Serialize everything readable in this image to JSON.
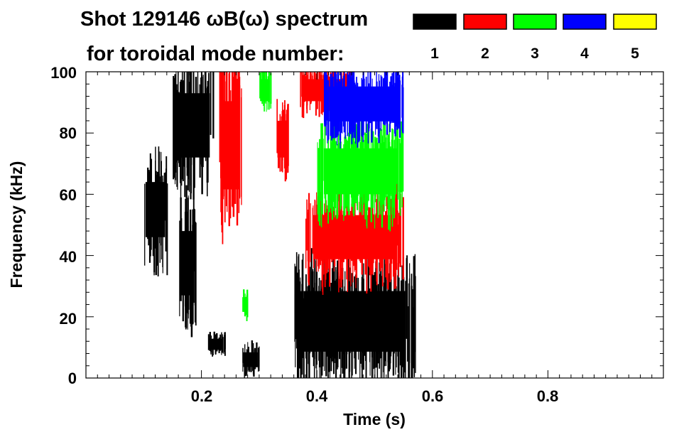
{
  "title": {
    "line1": "Shot 129146 ωB(ω) spectrum",
    "line2": "for toroidal mode number:"
  },
  "chart_data": {
    "type": "heatmap",
    "xlabel": "Time (s)",
    "ylabel": "Frequency (kHz)",
    "xlim": [
      0.0,
      1.0
    ],
    "ylim": [
      0,
      100
    ],
    "x_tick_labels": [
      "0.2",
      "0.4",
      "0.6",
      "0.8"
    ],
    "y_tick_labels": [
      "0",
      "20",
      "40",
      "60",
      "80",
      "100"
    ],
    "legend": {
      "placement": "top-right",
      "entries": [
        {
          "label": "1",
          "color": "#000000"
        },
        {
          "label": "2",
          "color": "#ff0000"
        },
        {
          "label": "3",
          "color": "#00ff00"
        },
        {
          "label": "4",
          "color": "#0000ff"
        },
        {
          "label": "5",
          "color": "#ffff00"
        }
      ]
    },
    "series": [
      {
        "mode": "1",
        "color": "#000000",
        "regions": [
          {
            "t": [
              0.1,
              0.14
            ],
            "f": [
              40,
              70
            ]
          },
          {
            "t": [
              0.15,
              0.22
            ],
            "f": [
              65,
              100
            ]
          },
          {
            "t": [
              0.16,
              0.19
            ],
            "f": [
              20,
              55
            ]
          },
          {
            "t": [
              0.21,
              0.24
            ],
            "f": [
              8,
              14
            ]
          },
          {
            "t": [
              0.27,
              0.3
            ],
            "f": [
              2,
              10
            ]
          },
          {
            "t": [
              0.36,
              0.57
            ],
            "f": [
              2,
              35
            ]
          }
        ]
      },
      {
        "mode": "2",
        "color": "#ff0000",
        "regions": [
          {
            "t": [
              0.23,
              0.27
            ],
            "f": [
              52,
              100
            ]
          },
          {
            "t": [
              0.33,
              0.35
            ],
            "f": [
              68,
              88
            ]
          },
          {
            "t": [
              0.38,
              0.55
            ],
            "f": [
              34,
              58
            ]
          },
          {
            "t": [
              0.37,
              0.46
            ],
            "f": [
              88,
              100
            ]
          }
        ]
      },
      {
        "mode": "3",
        "color": "#00ff00",
        "regions": [
          {
            "t": [
              0.3,
              0.32
            ],
            "f": [
              88,
              100
            ]
          },
          {
            "t": [
              0.4,
              0.55
            ],
            "f": [
              55,
              80
            ]
          },
          {
            "t": [
              0.27,
              0.28
            ],
            "f": [
              20,
              28
            ]
          }
        ]
      },
      {
        "mode": "4",
        "color": "#0000ff",
        "regions": [
          {
            "t": [
              0.41,
              0.55
            ],
            "f": [
              80,
              99
            ]
          }
        ]
      }
    ]
  }
}
